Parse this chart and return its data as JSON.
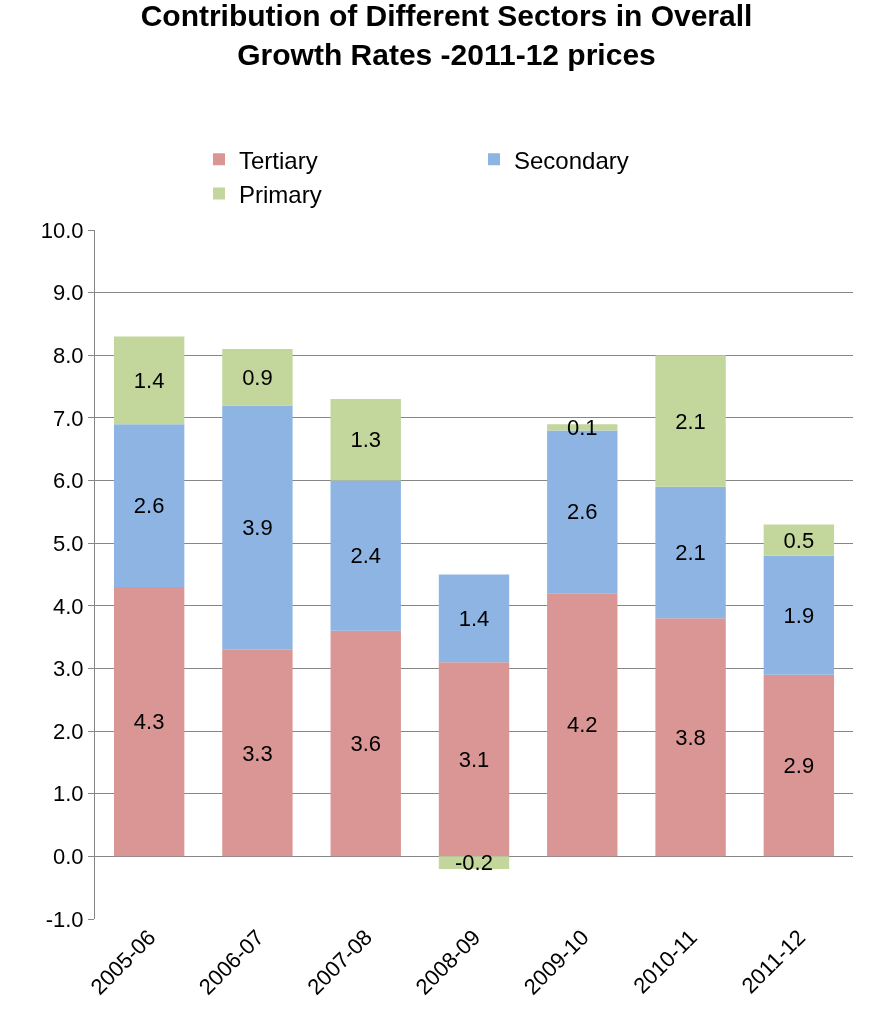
{
  "chart_data": {
    "type": "bar",
    "title": "Contribution of Different Sectors in Overall Growth Rates -2011-12 prices",
    "stacked": true,
    "categories": [
      "2005-06",
      "2006-07",
      "2007-08",
      "2008-09",
      "2009-10",
      "2010-11",
      "2011-12"
    ],
    "series": [
      {
        "name": "Tertiary",
        "color": "#d99694",
        "values": [
          4.3,
          3.3,
          3.6,
          3.1,
          4.2,
          3.8,
          2.9
        ]
      },
      {
        "name": "Secondary",
        "color": "#8eb4e3",
        "values": [
          2.6,
          3.9,
          2.4,
          1.4,
          2.6,
          2.1,
          1.9
        ]
      },
      {
        "name": "Primary",
        "color": "#c3d69b",
        "values": [
          1.4,
          0.9,
          1.3,
          -0.2,
          0.1,
          2.1,
          0.5
        ]
      }
    ],
    "ylim": [
      -1,
      10
    ],
    "yticks": [
      {
        "value": -1,
        "label": "-1.0"
      },
      {
        "value": 0,
        "label": "0.0"
      },
      {
        "value": 1,
        "label": "1.0"
      },
      {
        "value": 2,
        "label": "2.0"
      },
      {
        "value": 3,
        "label": "3.0"
      },
      {
        "value": 4,
        "label": "4.0"
      },
      {
        "value": 5,
        "label": "5.0"
      },
      {
        "value": 6,
        "label": "6.0"
      },
      {
        "value": 7,
        "label": "7.0"
      },
      {
        "value": 8,
        "label": "8.0"
      },
      {
        "value": 9,
        "label": "9.0"
      },
      {
        "value": 10,
        "label": "10.0"
      }
    ],
    "grid": "y",
    "legend": "top",
    "data_labels": true
  }
}
